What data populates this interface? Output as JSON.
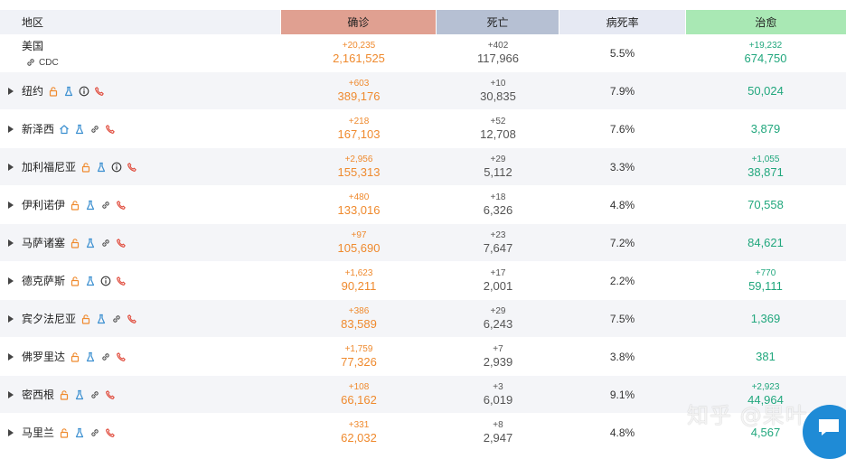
{
  "header": {
    "region": "地区",
    "confirmed": "确诊",
    "deaths": "死亡",
    "fatality_rate": "病死率",
    "recovered": "治愈"
  },
  "colors": {
    "confirmed_header": "#e0a091",
    "deaths_header": "#b6c0d3",
    "rate_header": "#e6e9f3",
    "recovered_header": "#a9e8b4",
    "orange": "#ef8a2e",
    "green": "#21a77d"
  },
  "rows": [
    {
      "name": "美国",
      "sub": "CDC",
      "conf_delta": "+20,235",
      "conf": "2,161,525",
      "death_delta": "+402",
      "death": "117,966",
      "rate": "5.5%",
      "rec_delta": "+19,232",
      "rec": "674,750"
    },
    {
      "name": "纽约",
      "icons": [
        "lock-icon",
        "flask-icon",
        "info-icon",
        "phone-icon"
      ],
      "conf_delta": "+603",
      "conf": "389,176",
      "death_delta": "+10",
      "death": "30,835",
      "rate": "7.9%",
      "rec_delta": "",
      "rec": "50,024"
    },
    {
      "name": "新泽西",
      "icons": [
        "home-icon",
        "flask-icon",
        "link-icon",
        "phone-icon"
      ],
      "conf_delta": "+218",
      "conf": "167,103",
      "death_delta": "+52",
      "death": "12,708",
      "rate": "7.6%",
      "rec_delta": "",
      "rec": "3,879"
    },
    {
      "name": "加利福尼亚",
      "icons": [
        "lock-icon",
        "flask-icon",
        "info-icon",
        "phone-icon"
      ],
      "conf_delta": "+2,956",
      "conf": "155,313",
      "death_delta": "+29",
      "death": "5,112",
      "rate": "3.3%",
      "rec_delta": "+1,055",
      "rec": "38,871"
    },
    {
      "name": "伊利诺伊",
      "icons": [
        "lock-icon",
        "flask-icon",
        "link-icon",
        "phone-icon"
      ],
      "conf_delta": "+480",
      "conf": "133,016",
      "death_delta": "+18",
      "death": "6,326",
      "rate": "4.8%",
      "rec_delta": "",
      "rec": "70,558"
    },
    {
      "name": "马萨诸塞",
      "icons": [
        "lock-icon",
        "flask-icon",
        "link-icon",
        "phone-icon"
      ],
      "conf_delta": "+97",
      "conf": "105,690",
      "death_delta": "+23",
      "death": "7,647",
      "rate": "7.2%",
      "rec_delta": "",
      "rec": "84,621"
    },
    {
      "name": "德克萨斯",
      "icons": [
        "lock-icon",
        "flask-icon",
        "info-icon",
        "phone-icon"
      ],
      "conf_delta": "+1,623",
      "conf": "90,211",
      "death_delta": "+17",
      "death": "2,001",
      "rate": "2.2%",
      "rec_delta": "+770",
      "rec": "59,111"
    },
    {
      "name": "宾夕法尼亚",
      "icons": [
        "lock-icon",
        "flask-icon",
        "link-icon",
        "phone-icon"
      ],
      "conf_delta": "+386",
      "conf": "83,589",
      "death_delta": "+29",
      "death": "6,243",
      "rate": "7.5%",
      "rec_delta": "",
      "rec": "1,369"
    },
    {
      "name": "佛罗里达",
      "icons": [
        "lock-icon",
        "flask-icon",
        "link-icon",
        "phone-icon"
      ],
      "conf_delta": "+1,759",
      "conf": "77,326",
      "death_delta": "+7",
      "death": "2,939",
      "rate": "3.8%",
      "rec_delta": "",
      "rec": "381"
    },
    {
      "name": "密西根",
      "icons": [
        "lock-icon",
        "flask-icon",
        "link-icon",
        "phone-icon"
      ],
      "conf_delta": "+108",
      "conf": "66,162",
      "death_delta": "+3",
      "death": "6,019",
      "rate": "9.1%",
      "rec_delta": "+2,923",
      "rec": "44,964"
    },
    {
      "name": "马里兰",
      "icons": [
        "lock-icon",
        "flask-icon",
        "link-icon",
        "phone-icon"
      ],
      "conf_delta": "+331",
      "conf": "62,032",
      "death_delta": "+8",
      "death": "2,947",
      "rate": "4.8%",
      "rec_delta": "",
      "rec": "4,567"
    }
  ],
  "watermark": "知乎 @果叶"
}
